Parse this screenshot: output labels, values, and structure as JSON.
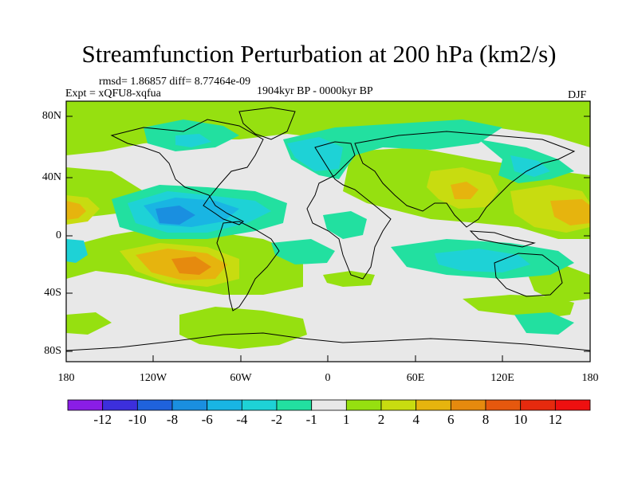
{
  "title": "Streamfunction Perturbation at 200 hPa (km2/s)",
  "stats_line": "rmsd= 1.86857 diff= 8.77464e-09",
  "experiment": "Expt = xQFU8-xqfua",
  "period": "1904kyr BP - 0000kyr BP",
  "season": "DJF",
  "lat_labels": [
    "80N",
    "40N",
    "0",
    "40S",
    "80S"
  ],
  "lon_labels": [
    "180",
    "120W",
    "60W",
    "0",
    "60E",
    "120E",
    "180"
  ],
  "colorbar": {
    "labels": [
      "-12",
      "-10",
      "-8",
      "-6",
      "-4",
      "-2",
      "-1",
      "1",
      "2",
      "4",
      "6",
      "8",
      "10",
      "12"
    ],
    "colors": [
      "#8a1de6",
      "#3c2fdc",
      "#1f62dc",
      "#1a8fe0",
      "#19b5e3",
      "#1ed2d6",
      "#22e0a0",
      "#e8e8e8",
      "#96e010",
      "#c8dc10",
      "#e6b40e",
      "#e68a0e",
      "#e6580e",
      "#e62a0e",
      "#ee1010"
    ]
  },
  "field": [
    {
      "region": "arctic-band",
      "lon_range": [
        -150,
        150
      ],
      "lat_range": [
        65,
        85
      ],
      "level": "2"
    },
    {
      "region": "north-atlantic-asia",
      "lon_range": [
        -40,
        130
      ],
      "lat_range": [
        40,
        75
      ],
      "level": "-2"
    },
    {
      "region": "tropical-east-pacific",
      "lon_range": [
        -150,
        -50
      ],
      "lat_range": [
        -10,
        30
      ],
      "level": "-6"
    },
    {
      "region": "south-pacific",
      "lon_range": [
        -160,
        -50
      ],
      "lat_range": [
        -50,
        -5
      ],
      "level": "6"
    },
    {
      "region": "asia",
      "lon_range": [
        70,
        120
      ],
      "lat_range": [
        15,
        45
      ],
      "level": "4"
    },
    {
      "region": "indian-ocean",
      "lon_range": [
        50,
        150
      ],
      "lat_range": [
        -40,
        -5
      ],
      "level": "-2"
    },
    {
      "region": "southern-ocean",
      "lon_range": [
        -120,
        -30
      ],
      "lat_range": [
        -75,
        -50
      ],
      "level": "2"
    }
  ]
}
